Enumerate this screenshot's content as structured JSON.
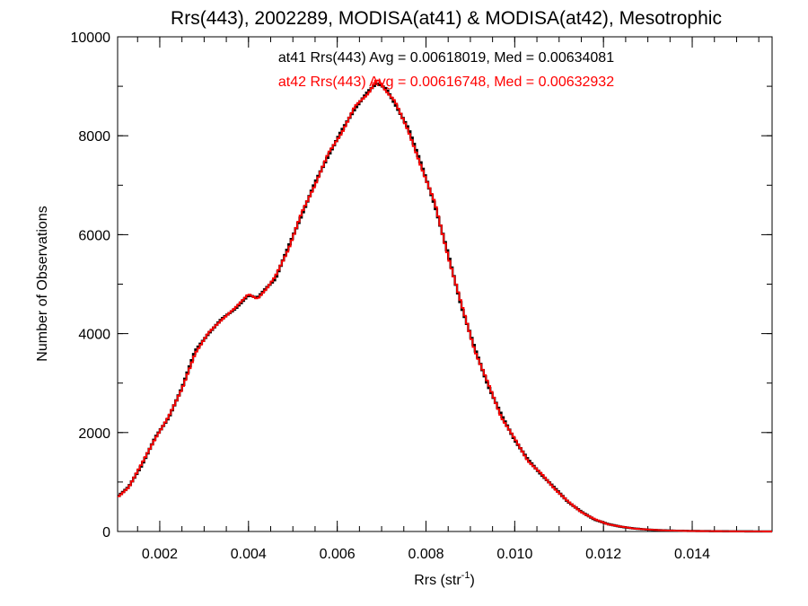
{
  "chart_data": {
    "type": "line",
    "style": "step-histogram",
    "title": "Rrs(443), 2002289, MODISA(at41) & MODISA(at42), Mesotrophic",
    "xlabel_main": "Rrs (str",
    "xlabel_sup": "-1",
    "xlabel_close": ")",
    "ylabel": "Number of Observations",
    "xlim": [
      0.00105,
      0.0158
    ],
    "ylim": [
      0,
      10000
    ],
    "x_ticks": [
      0.002,
      0.004,
      0.006,
      0.008,
      0.01,
      0.012,
      0.014
    ],
    "x_tick_labels": [
      "0.002",
      "0.004",
      "0.006",
      "0.008",
      "0.010",
      "0.012",
      "0.014"
    ],
    "y_ticks": [
      0,
      2000,
      4000,
      6000,
      8000,
      10000
    ],
    "y_tick_labels": [
      "0",
      "2000",
      "4000",
      "6000",
      "8000",
      "10000"
    ],
    "x_minor_step": 0.0005,
    "y_minor_step": 1000,
    "bin_width": 5e-05,
    "annotations": [
      {
        "text": "at41 Rrs(443) Avg = 0.00618019, Med = 0.00634081",
        "color": "#000000"
      },
      {
        "text": "at42 Rrs(443) Avg = 0.00616748, Med = 0.00632932",
        "color": "#ff0000"
      }
    ],
    "series": [
      {
        "name": "at41",
        "color": "#000000",
        "control_points": {
          "x": [
            0.00105,
            0.0013,
            0.0016,
            0.0019,
            0.0022,
            0.0025,
            0.0028,
            0.0031,
            0.0034,
            0.0037,
            0.004,
            0.0042,
            0.0044,
            0.0046,
            0.0049,
            0.0052,
            0.0055,
            0.0058,
            0.0061,
            0.0064,
            0.0067,
            0.0069,
            0.0071,
            0.0073,
            0.0076,
            0.0079,
            0.0082,
            0.0085,
            0.0088,
            0.0091,
            0.0094,
            0.0097,
            0.01,
            0.0103,
            0.0106,
            0.0109,
            0.0112,
            0.0115,
            0.0118,
            0.0121,
            0.0124,
            0.0127,
            0.013,
            0.0133,
            0.0136,
            0.014,
            0.0145,
            0.015,
            0.0158
          ],
          "y": [
            700,
            900,
            1350,
            1900,
            2300,
            2900,
            3650,
            4000,
            4300,
            4500,
            4780,
            4720,
            4920,
            5100,
            5750,
            6400,
            7050,
            7600,
            8100,
            8550,
            8900,
            9070,
            8950,
            8650,
            8150,
            7400,
            6600,
            5600,
            4550,
            3700,
            2950,
            2350,
            1850,
            1450,
            1150,
            880,
            600,
            400,
            240,
            150,
            95,
            60,
            38,
            25,
            16,
            10,
            6,
            3,
            1
          ]
        }
      },
      {
        "name": "at42",
        "color": "#ff0000",
        "control_points": {
          "x": [
            0.00105,
            0.0013,
            0.0016,
            0.0019,
            0.0022,
            0.0025,
            0.0028,
            0.0031,
            0.0034,
            0.0037,
            0.004,
            0.0042,
            0.0044,
            0.0046,
            0.0049,
            0.0052,
            0.0055,
            0.0058,
            0.0061,
            0.0064,
            0.0067,
            0.0069,
            0.0071,
            0.0073,
            0.0076,
            0.0079,
            0.0082,
            0.0085,
            0.0088,
            0.0091,
            0.0094,
            0.0097,
            0.01,
            0.0103,
            0.0106,
            0.0109,
            0.0112,
            0.0115,
            0.0118,
            0.0121,
            0.0124,
            0.0127,
            0.013,
            0.0133,
            0.0136,
            0.014,
            0.0145,
            0.015,
            0.0158
          ],
          "y": [
            690,
            890,
            1380,
            1880,
            2320,
            2880,
            3600,
            4020,
            4280,
            4520,
            4800,
            4700,
            4900,
            5150,
            5700,
            6450,
            7000,
            7650,
            8050,
            8600,
            8850,
            9150,
            8900,
            8700,
            8100,
            7350,
            6650,
            5550,
            4600,
            3650,
            3000,
            2300,
            1880,
            1420,
            1170,
            860,
            610,
            390,
            250,
            145,
            98,
            58,
            40,
            24,
            17,
            9,
            6,
            3,
            1
          ]
        }
      }
    ]
  }
}
